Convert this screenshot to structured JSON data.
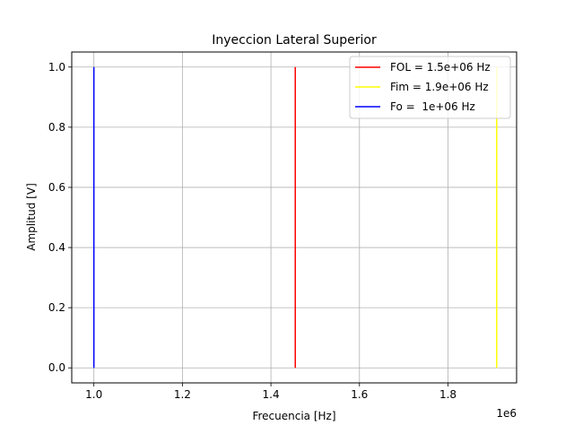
{
  "chart_data": {
    "type": "line",
    "title": "Inyeccion Lateral Superior",
    "xlabel": "Frecuencia [Hz]",
    "ylabel": "Amplitud [V]",
    "x_offset_label": "1e6",
    "xlim": [
      0.95,
      1.955
    ],
    "ylim": [
      -0.05,
      1.05
    ],
    "x_ticks": [
      1.0,
      1.2,
      1.4,
      1.6,
      1.8
    ],
    "x_tick_labels": [
      "1.0",
      "1.2",
      "1.4",
      "1.6",
      "1.8"
    ],
    "y_ticks": [
      0.0,
      0.2,
      0.4,
      0.6,
      0.8,
      1.0
    ],
    "y_tick_labels": [
      "0.0",
      "0.2",
      "0.4",
      "0.6",
      "0.8",
      "1.0"
    ],
    "grid": true,
    "legend_position": "top-right",
    "series": [
      {
        "name": "FOL = 1.5e+06 Hz",
        "color": "#ff0000",
        "x": [
          1.455,
          1.455
        ],
        "y": [
          0,
          1
        ]
      },
      {
        "name": "Fim = 1.9e+06 Hz",
        "color": "#ffff00",
        "x": [
          1.91,
          1.91
        ],
        "y": [
          0,
          1
        ]
      },
      {
        "name": "Fo =  1e+06 Hz",
        "color": "#0000ff",
        "x": [
          1.0,
          1.0
        ],
        "y": [
          0,
          1
        ]
      }
    ]
  }
}
